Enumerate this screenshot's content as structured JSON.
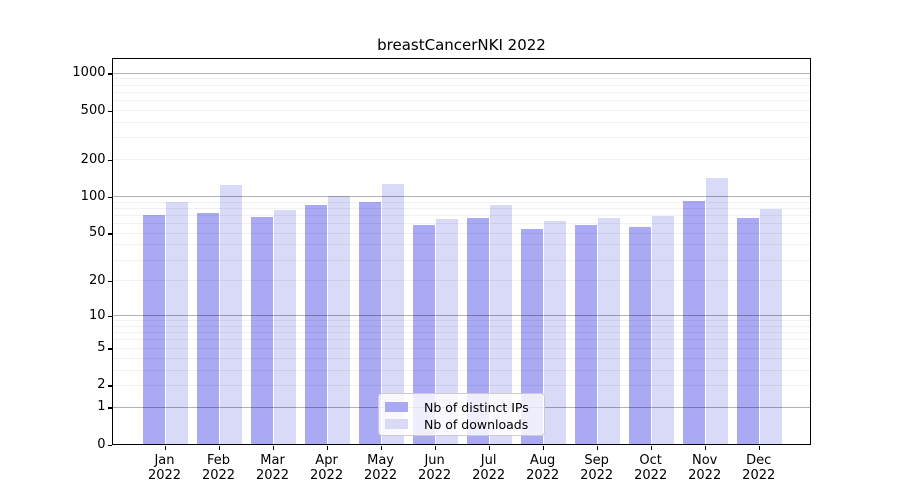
{
  "title": "breastCancerNKI 2022",
  "colors": {
    "bar_distinct_ips": "#a9a9f4",
    "bar_downloads": "#d9d9f8",
    "grid_major": "#b4b4b4",
    "grid_minor": "#f0f0f0",
    "spine": "#000000",
    "legend_border": "#cccccc"
  },
  "legend": {
    "items": [
      {
        "label": "Nb of distinct IPs",
        "color": "#a9a9f4"
      },
      {
        "label": "Nb of downloads",
        "color": "#d9d9f8"
      }
    ]
  },
  "chart_data": {
    "type": "bar",
    "title": "breastCancerNKI 2022",
    "categories": [
      "Jan 2022",
      "Feb 2022",
      "Mar 2022",
      "Apr 2022",
      "May 2022",
      "Jun 2022",
      "Jul 2022",
      "Aug 2022",
      "Sep 2022",
      "Oct 2022",
      "Nov 2022",
      "Dec 2022"
    ],
    "series": [
      {
        "name": "Nb of distinct IPs",
        "color": "#a9a9f4",
        "values": [
          70,
          73,
          67,
          84,
          90,
          58,
          66,
          54,
          58,
          56,
          92,
          66
        ]
      },
      {
        "name": "Nb of downloads",
        "color": "#d9d9f8",
        "values": [
          90,
          122,
          77,
          101,
          125,
          65,
          84,
          62,
          66,
          69,
          140,
          78
        ]
      }
    ],
    "xlabel": "",
    "ylabel": "",
    "yscale": "log1p",
    "y_ticks": [
      0,
      1,
      2,
      5,
      10,
      20,
      50,
      100,
      200,
      500,
      1000
    ],
    "ylim": [
      0,
      1294
    ],
    "grid": "horizontal, minor and major, drawn over bars",
    "legend_position": "lower center inside plot"
  }
}
